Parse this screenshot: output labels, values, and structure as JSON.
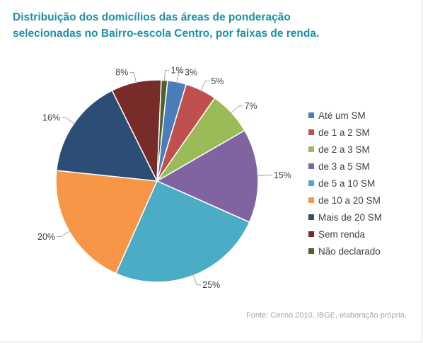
{
  "title": "Distribuição dos domicílios das áreas de ponderação selecionadas no Bairro-escola Centro, por faixas de renda.",
  "source": "Fonte: Censo 2010, IBGE, elaboração própria.",
  "chart_data": {
    "type": "pie",
    "title": "Distribuição dos domicílios das áreas de ponderação selecionadas no Bairro-escola Centro, por faixas de renda.",
    "legend_position": "right",
    "slices": [
      {
        "name": "Até um SM",
        "value": 3,
        "label": "3%",
        "color": "#4a7ebb"
      },
      {
        "name": "de 1 a 2 SM",
        "value": 5,
        "label": "5%",
        "color": "#c0504d"
      },
      {
        "name": "de 2 a 3 SM",
        "value": 7,
        "label": "7%",
        "color": "#9bbb59"
      },
      {
        "name": "de 3 a 5 SM",
        "value": 15,
        "label": "15%",
        "color": "#8064a2"
      },
      {
        "name": "de 5 a 10 SM",
        "value": 25,
        "label": "25%",
        "color": "#4bacc6"
      },
      {
        "name": "de 10 a 20 SM",
        "value": 20,
        "label": "20%",
        "color": "#f79646"
      },
      {
        "name": "Mais de 20 SM",
        "value": 16,
        "label": "16%",
        "color": "#2c4d75"
      },
      {
        "name": "Sem renda",
        "value": 8,
        "label": "8%",
        "color": "#772c2a"
      },
      {
        "name": "Não declarado",
        "value": 1,
        "label": "1%",
        "color": "#4f6228"
      }
    ]
  }
}
